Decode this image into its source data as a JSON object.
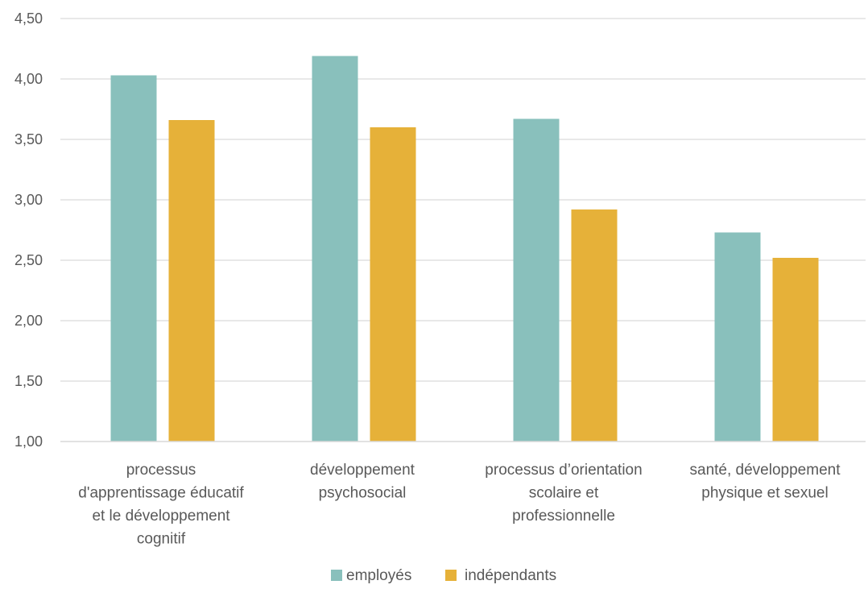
{
  "chart_data": {
    "type": "bar",
    "title": "",
    "xlabel": "",
    "ylabel": "",
    "ylim": [
      1.0,
      4.5
    ],
    "y_ticks": [
      "1,00",
      "1,50",
      "2,00",
      "2,50",
      "3,00",
      "3,50",
      "4,00",
      "4,50"
    ],
    "grid": true,
    "legend_position": "bottom",
    "categories": [
      "processus d'apprentissage éducatif et le développement cognitif",
      "développement psychosocial",
      "processus d’orientation scolaire et professionnelle",
      "santé, développement physique et sexuel"
    ],
    "category_lines": [
      [
        "processus",
        "d'apprentissage éducatif",
        "et le développement",
        "cognitif"
      ],
      [
        "développement",
        "psychosocial"
      ],
      [
        "processus d’orientation",
        "scolaire et",
        "professionnelle"
      ],
      [
        "santé, développement",
        "physique et sexuel"
      ]
    ],
    "series": [
      {
        "name": "employés",
        "color": "#89c0bc",
        "values": [
          4.03,
          4.19,
          3.67,
          2.73
        ]
      },
      {
        "name": "indépendants",
        "color": "#e6b139",
        "values": [
          3.66,
          3.6,
          2.92,
          2.52
        ]
      }
    ],
    "colors": {
      "grid": "#d9d9d9",
      "text": "#595959"
    }
  }
}
